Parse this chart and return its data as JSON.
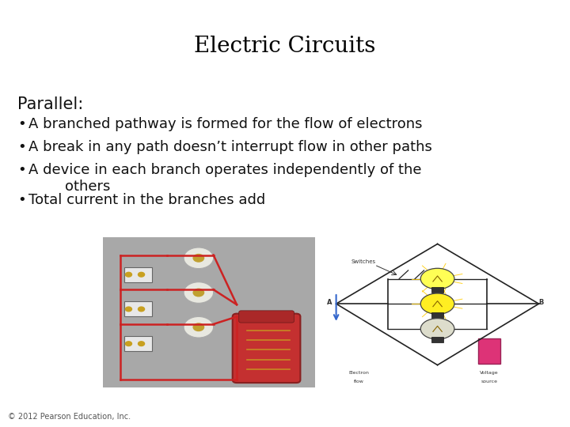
{
  "title": "Electric Circuits",
  "subtitle": "Parallel:",
  "bullets": [
    "A branched pathway is formed for the flow of electrons",
    "A break in any path doesn’t interrupt flow in other paths",
    "A device in each branch operates independently of the\n        others",
    "Total current in the branches add"
  ],
  "footer": "© 2012 Pearson Education, Inc.",
  "background_color": "#ffffff",
  "title_fontsize": 20,
  "subtitle_fontsize": 15,
  "bullet_fontsize": 13,
  "footer_fontsize": 7,
  "title_font": "DejaVu Serif",
  "body_font": "DejaVu Sans",
  "title_color": "#000000",
  "text_color": "#111111"
}
